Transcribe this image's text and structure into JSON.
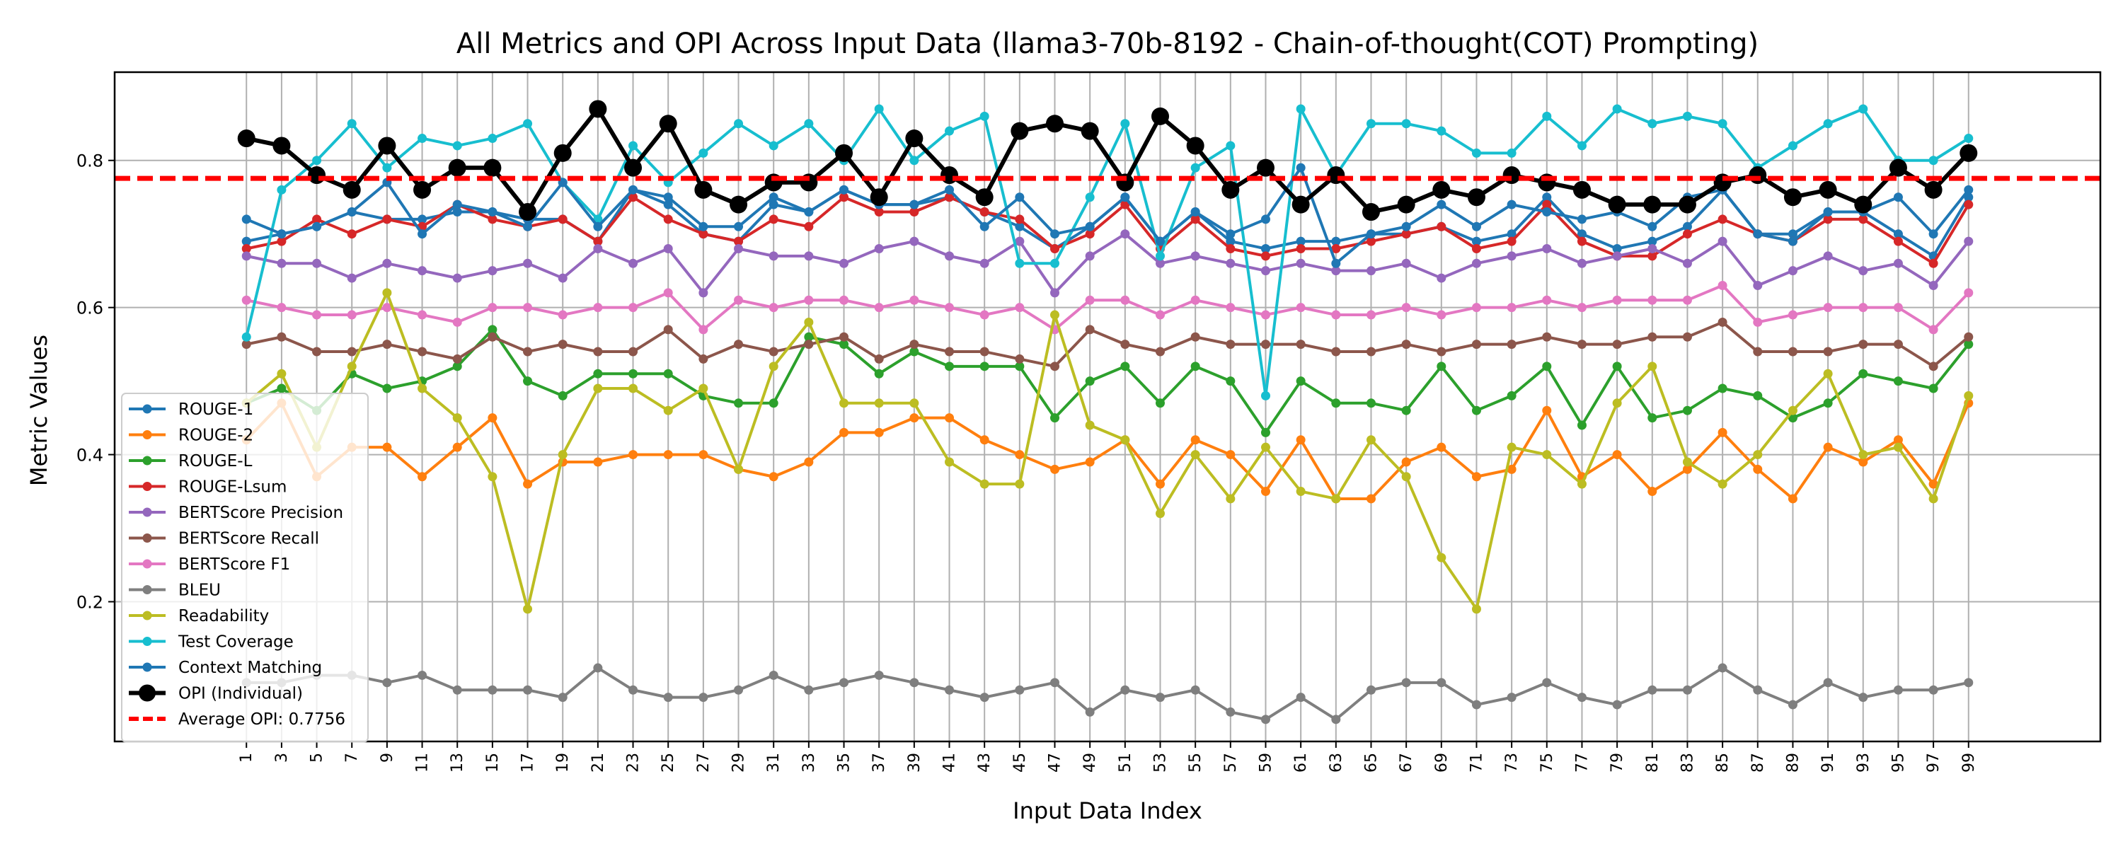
{
  "chart_data": {
    "type": "line",
    "title": "All Metrics and OPI Across Input Data (llama3-70b-8192 - Chain-of-thought(COT) Prompting)",
    "xlabel": "Input Data Index",
    "ylabel": "Metric Values",
    "x": [
      1,
      3,
      5,
      7,
      9,
      11,
      13,
      15,
      17,
      19,
      21,
      23,
      25,
      27,
      29,
      31,
      33,
      35,
      37,
      39,
      41,
      43,
      45,
      47,
      49,
      51,
      53,
      55,
      57,
      59,
      61,
      63,
      65,
      67,
      69,
      71,
      73,
      75,
      77,
      79,
      81,
      83,
      85,
      87,
      89,
      91,
      93,
      95,
      97,
      99
    ],
    "xticks": [
      "1",
      "3",
      "5",
      "7",
      "9",
      "11",
      "13",
      "15",
      "17",
      "19",
      "21",
      "23",
      "25",
      "27",
      "29",
      "31",
      "33",
      "35",
      "37",
      "39",
      "41",
      "43",
      "45",
      "47",
      "49",
      "51",
      "53",
      "55",
      "57",
      "59",
      "61",
      "63",
      "65",
      "67",
      "69",
      "71",
      "73",
      "75",
      "77",
      "79",
      "81",
      "83",
      "85",
      "87",
      "89",
      "91",
      "93",
      "95",
      "97",
      "99"
    ],
    "yticks": [
      "0.2",
      "0.4",
      "0.6",
      "0.8"
    ],
    "ylim": [
      0.01,
      0.92
    ],
    "xlim": [
      -6.5,
      106.5
    ],
    "grid": true,
    "legend_position": "lower-left",
    "average_opi": {
      "label": "Average OPI: 0.7756",
      "value": 0.7756,
      "color": "#ff0000"
    },
    "series": [
      {
        "name": "ROUGE-1",
        "color": "#1f77b4",
        "values": [
          0.69,
          0.7,
          0.71,
          0.73,
          0.72,
          0.72,
          0.73,
          0.73,
          0.72,
          0.72,
          0.69,
          0.76,
          0.74,
          0.7,
          0.69,
          0.74,
          0.73,
          0.76,
          0.74,
          0.74,
          0.75,
          0.73,
          0.71,
          0.68,
          0.71,
          0.75,
          0.69,
          0.73,
          0.69,
          0.68,
          0.69,
          0.69,
          0.7,
          0.7,
          0.71,
          0.69,
          0.7,
          0.75,
          0.7,
          0.68,
          0.69,
          0.71,
          0.76,
          0.7,
          0.7,
          0.73,
          0.73,
          0.7,
          0.67,
          0.75
        ]
      },
      {
        "name": "ROUGE-2",
        "color": "#ff7f0e",
        "values": [
          0.42,
          0.47,
          0.37,
          0.41,
          0.41,
          0.37,
          0.41,
          0.45,
          0.36,
          0.39,
          0.39,
          0.4,
          0.4,
          0.4,
          0.38,
          0.37,
          0.39,
          0.43,
          0.43,
          0.45,
          0.45,
          0.42,
          0.4,
          0.38,
          0.39,
          0.42,
          0.36,
          0.42,
          0.4,
          0.35,
          0.42,
          0.34,
          0.34,
          0.39,
          0.41,
          0.37,
          0.38,
          0.46,
          0.37,
          0.4,
          0.35,
          0.38,
          0.43,
          0.38,
          0.34,
          0.41,
          0.39,
          0.42,
          0.36,
          0.47
        ]
      },
      {
        "name": "ROUGE-L",
        "color": "#2ca02c",
        "values": [
          0.47,
          0.49,
          0.46,
          0.51,
          0.49,
          0.5,
          0.52,
          0.57,
          0.5,
          0.48,
          0.51,
          0.51,
          0.51,
          0.48,
          0.47,
          0.47,
          0.56,
          0.55,
          0.51,
          0.54,
          0.52,
          0.52,
          0.52,
          0.45,
          0.5,
          0.52,
          0.47,
          0.52,
          0.5,
          0.43,
          0.5,
          0.47,
          0.47,
          0.46,
          0.52,
          0.46,
          0.48,
          0.52,
          0.44,
          0.52,
          0.45,
          0.46,
          0.49,
          0.48,
          0.45,
          0.47,
          0.51,
          0.5,
          0.49,
          0.55
        ]
      },
      {
        "name": "ROUGE-Lsum",
        "color": "#d62728",
        "values": [
          0.68,
          0.69,
          0.72,
          0.7,
          0.72,
          0.71,
          0.74,
          0.72,
          0.71,
          0.72,
          0.69,
          0.75,
          0.72,
          0.7,
          0.69,
          0.72,
          0.71,
          0.75,
          0.73,
          0.73,
          0.75,
          0.73,
          0.72,
          0.68,
          0.7,
          0.74,
          0.68,
          0.72,
          0.68,
          0.67,
          0.68,
          0.68,
          0.69,
          0.7,
          0.71,
          0.68,
          0.69,
          0.74,
          0.69,
          0.67,
          0.67,
          0.7,
          0.72,
          0.7,
          0.69,
          0.72,
          0.72,
          0.69,
          0.66,
          0.74
        ]
      },
      {
        "name": "BERTScore Precision",
        "color": "#9467bd",
        "values": [
          0.67,
          0.66,
          0.66,
          0.64,
          0.66,
          0.65,
          0.64,
          0.65,
          0.66,
          0.64,
          0.68,
          0.66,
          0.68,
          0.62,
          0.68,
          0.67,
          0.67,
          0.66,
          0.68,
          0.69,
          0.67,
          0.66,
          0.69,
          0.62,
          0.67,
          0.7,
          0.66,
          0.67,
          0.66,
          0.65,
          0.66,
          0.65,
          0.65,
          0.66,
          0.64,
          0.66,
          0.67,
          0.68,
          0.66,
          0.67,
          0.68,
          0.66,
          0.69,
          0.63,
          0.65,
          0.67,
          0.65,
          0.66,
          0.63,
          0.69
        ]
      },
      {
        "name": "BERTScore Recall",
        "color": "#8c564b",
        "values": [
          0.55,
          0.56,
          0.54,
          0.54,
          0.55,
          0.54,
          0.53,
          0.56,
          0.54,
          0.55,
          0.54,
          0.54,
          0.57,
          0.53,
          0.55,
          0.54,
          0.55,
          0.56,
          0.53,
          0.55,
          0.54,
          0.54,
          0.53,
          0.52,
          0.57,
          0.55,
          0.54,
          0.56,
          0.55,
          0.55,
          0.55,
          0.54,
          0.54,
          0.55,
          0.54,
          0.55,
          0.55,
          0.56,
          0.55,
          0.55,
          0.56,
          0.56,
          0.58,
          0.54,
          0.54,
          0.54,
          0.55,
          0.55,
          0.52,
          0.56
        ]
      },
      {
        "name": "BERTScore F1",
        "color": "#e377c2",
        "values": [
          0.61,
          0.6,
          0.59,
          0.59,
          0.6,
          0.59,
          0.58,
          0.6,
          0.6,
          0.59,
          0.6,
          0.6,
          0.62,
          0.57,
          0.61,
          0.6,
          0.61,
          0.61,
          0.6,
          0.61,
          0.6,
          0.59,
          0.6,
          0.57,
          0.61,
          0.61,
          0.59,
          0.61,
          0.6,
          0.59,
          0.6,
          0.59,
          0.59,
          0.6,
          0.59,
          0.6,
          0.6,
          0.61,
          0.6,
          0.61,
          0.61,
          0.61,
          0.63,
          0.58,
          0.59,
          0.6,
          0.6,
          0.6,
          0.57,
          0.62
        ]
      },
      {
        "name": "BLEU",
        "color": "#7f7f7f",
        "values": [
          0.09,
          0.09,
          0.1,
          0.1,
          0.09,
          0.1,
          0.08,
          0.08,
          0.08,
          0.07,
          0.11,
          0.08,
          0.07,
          0.07,
          0.08,
          0.1,
          0.08,
          0.09,
          0.1,
          0.09,
          0.08,
          0.07,
          0.08,
          0.09,
          0.05,
          0.08,
          0.07,
          0.08,
          0.05,
          0.04,
          0.07,
          0.04,
          0.08,
          0.09,
          0.09,
          0.06,
          0.07,
          0.09,
          0.07,
          0.06,
          0.08,
          0.08,
          0.11,
          0.08,
          0.06,
          0.09,
          0.07,
          0.08,
          0.08,
          0.09
        ]
      },
      {
        "name": "Readability",
        "color": "#bcbd22",
        "values": [
          0.47,
          0.51,
          0.41,
          0.52,
          0.62,
          0.49,
          0.45,
          0.37,
          0.19,
          0.4,
          0.49,
          0.49,
          0.46,
          0.49,
          0.38,
          0.52,
          0.58,
          0.47,
          0.47,
          0.47,
          0.39,
          0.36,
          0.36,
          0.59,
          0.44,
          0.42,
          0.32,
          0.4,
          0.34,
          0.41,
          0.35,
          0.34,
          0.42,
          0.37,
          0.26,
          0.19,
          0.41,
          0.4,
          0.36,
          0.47,
          0.52,
          0.39,
          0.36,
          0.4,
          0.46,
          0.51,
          0.4,
          0.41,
          0.34,
          0.48
        ]
      },
      {
        "name": "Test Coverage",
        "color": "#17becf",
        "values": [
          0.56,
          0.76,
          0.8,
          0.85,
          0.79,
          0.83,
          0.82,
          0.83,
          0.85,
          0.77,
          0.72,
          0.82,
          0.77,
          0.81,
          0.85,
          0.82,
          0.85,
          0.8,
          0.87,
          0.8,
          0.84,
          0.86,
          0.66,
          0.66,
          0.75,
          0.85,
          0.67,
          0.79,
          0.82,
          0.48,
          0.87,
          0.78,
          0.85,
          0.85,
          0.84,
          0.81,
          0.81,
          0.86,
          0.82,
          0.87,
          0.85,
          0.86,
          0.85,
          0.79,
          0.82,
          0.85,
          0.87,
          0.8,
          0.8,
          0.83
        ]
      },
      {
        "name": "Context Matching",
        "color": "#1f77b4",
        "values": [
          0.72,
          0.7,
          0.71,
          0.73,
          0.77,
          0.7,
          0.74,
          0.73,
          0.71,
          0.77,
          0.71,
          0.76,
          0.75,
          0.71,
          0.71,
          0.75,
          0.73,
          0.76,
          0.74,
          0.74,
          0.76,
          0.71,
          0.75,
          0.7,
          0.71,
          0.75,
          0.69,
          0.73,
          0.7,
          0.72,
          0.79,
          0.66,
          0.7,
          0.71,
          0.74,
          0.71,
          0.74,
          0.73,
          0.72,
          0.73,
          0.71,
          0.75,
          0.76,
          0.7,
          0.69,
          0.73,
          0.73,
          0.75,
          0.7,
          0.76
        ]
      },
      {
        "name": "OPI (Individual)",
        "color": "#000000",
        "values": [
          0.83,
          0.82,
          0.78,
          0.76,
          0.82,
          0.76,
          0.79,
          0.79,
          0.73,
          0.81,
          0.87,
          0.79,
          0.85,
          0.76,
          0.74,
          0.77,
          0.77,
          0.81,
          0.75,
          0.83,
          0.78,
          0.75,
          0.84,
          0.85,
          0.84,
          0.77,
          0.86,
          0.82,
          0.76,
          0.79,
          0.74,
          0.78,
          0.73,
          0.74,
          0.76,
          0.75,
          0.78,
          0.77,
          0.76,
          0.74,
          0.74,
          0.74,
          0.77,
          0.78,
          0.75,
          0.76,
          0.74,
          0.79,
          0.76,
          0.81
        ]
      }
    ]
  }
}
